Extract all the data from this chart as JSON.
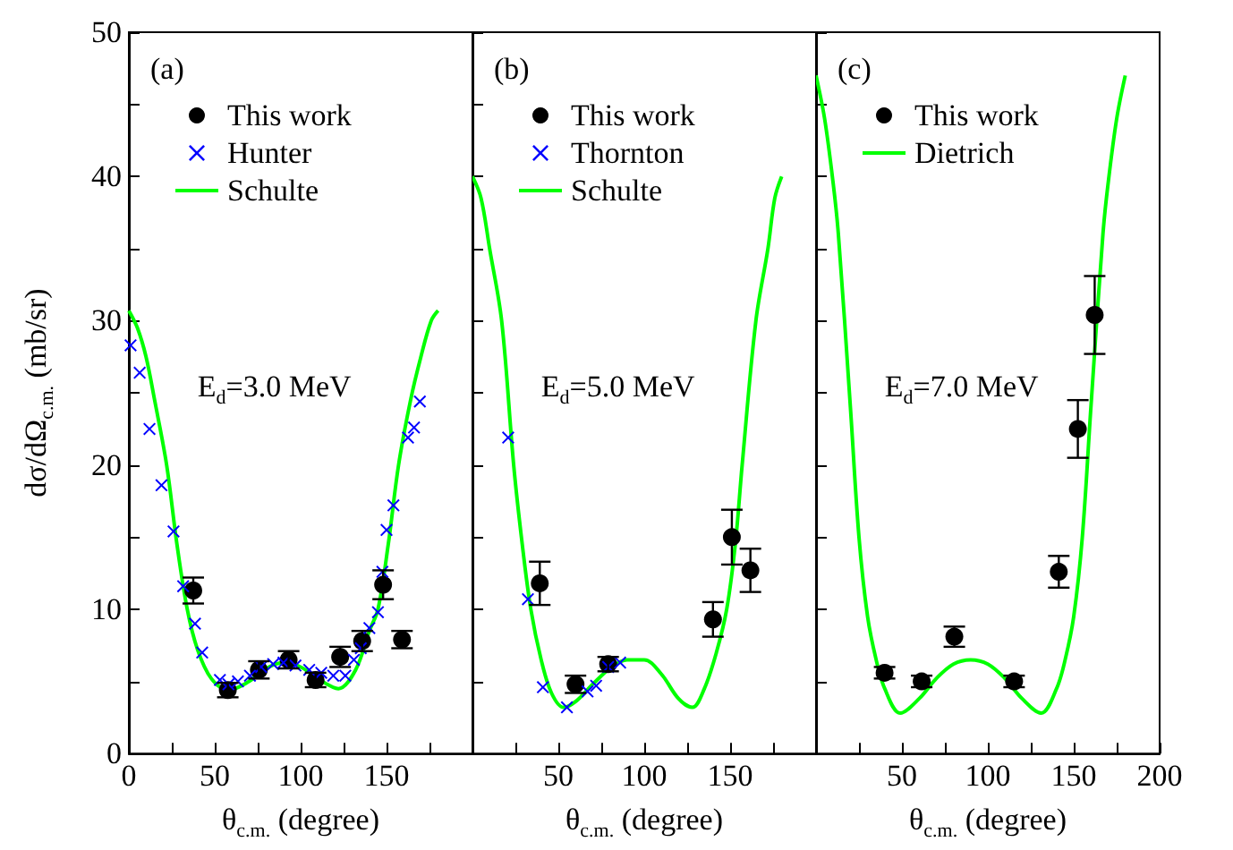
{
  "chart_data": [
    {
      "type": "scatter",
      "xlabel": "θ$_{c.m.}$ (degree)",
      "ylabel": "dσ/dΩ$_{c.m.}$ (mb/sr)",
      "xlim": [
        0,
        200
      ],
      "ylim": [
        0,
        50
      ],
      "xticks": [
        0,
        {
          "value": 25,
          "label": null
        },
        50,
        {
          "value": 75,
          "label": null
        },
        100,
        {
          "value": 125,
          "label": null
        },
        150,
        {
          "value": 175,
          "label": null
        },
        {
          "value": 200,
          "label": null
        }
      ],
      "yticks": [
        0,
        {
          "value": 5,
          "label": null
        },
        10,
        {
          "value": 15,
          "label": null
        },
        20,
        {
          "value": 25,
          "label": null
        },
        30,
        {
          "value": 35,
          "label": null
        },
        40,
        {
          "value": 45,
          "label": null
        },
        50
      ],
      "legend": "top left",
      "grid": false,
      "annotations": [
        "(a)",
        "E$_{d}$=3.0 MeV"
      ],
      "series": [
        {
          "name": "This work",
          "marker": "circle",
          "color": "#000000",
          "x": [
            37.5,
            57.6,
            75.7,
            93,
            108.7,
            123,
            135.8,
            148,
            159
          ],
          "values": [
            11.3,
            4.4,
            5.8,
            6.5,
            5.1,
            6.7,
            7.8,
            11.7,
            7.9
          ],
          "errors": [
            0.9,
            0.5,
            0.6,
            0.6,
            0.5,
            0.7,
            0.7,
            1.0,
            0.6
          ]
        },
        {
          "name": "Hunter",
          "marker": "cross",
          "color": "#0000ff",
          "x": [
            1,
            6.3,
            12,
            19,
            26,
            31.6,
            38.5,
            42.7,
            53,
            58,
            63.5,
            70.5,
            77,
            84,
            90,
            97,
            105,
            112,
            119,
            126,
            131,
            135,
            140,
            145,
            147.6,
            150,
            154,
            162.5,
            166,
            169.4
          ],
          "values": [
            28.3,
            26.4,
            22.5,
            18.6,
            15.4,
            11.6,
            9.0,
            7.0,
            5.1,
            4.8,
            5.0,
            5.4,
            6.0,
            6.2,
            6.3,
            6.1,
            5.8,
            5.6,
            5.4,
            5.4,
            6.5,
            7.3,
            8.7,
            9.8,
            12.6,
            15.5,
            17.2,
            21.9,
            22.6,
            24.4
          ]
        },
        {
          "name": "Schulte",
          "type": "line",
          "marker": "none",
          "color": "#00ff00",
          "x": [
            0,
            5,
            10,
            15,
            22,
            28,
            34,
            40,
            48,
            58,
            70,
            80,
            90,
            100,
            110,
            122,
            132,
            140,
            145,
            151,
            157,
            164,
            170,
            176,
            180
          ],
          "values": [
            30.7,
            29.5,
            27.5,
            24.5,
            20,
            14.5,
            10,
            7.2,
            5.2,
            4.4,
            5.0,
            5.9,
            6.3,
            6.0,
            5.2,
            4.5,
            5.8,
            8.5,
            10,
            14.5,
            20,
            24.5,
            27.5,
            30,
            30.7
          ]
        }
      ]
    },
    {
      "type": "scatter",
      "xlabel": "θ$_{c.m.}$ (degree)",
      "xlim": [
        0,
        200
      ],
      "ylim": [
        0,
        50
      ],
      "tick_labels": "x",
      "xticks": [
        {
          "value": 0,
          "label": null
        },
        {
          "value": 25,
          "label": null
        },
        50,
        {
          "value": 75,
          "label": null
        },
        100,
        {
          "value": 125,
          "label": null
        },
        150,
        {
          "value": 175,
          "label": null
        },
        {
          "value": 200,
          "label": null
        }
      ],
      "yticks": [
        0,
        {
          "value": 5,
          "label": null
        },
        10,
        {
          "value": 15,
          "label": null
        },
        20,
        {
          "value": 25,
          "label": null
        },
        30,
        {
          "value": 35,
          "label": null
        },
        40,
        {
          "value": 45,
          "label": null
        },
        50
      ],
      "legend": "top left",
      "grid": false,
      "annotations": [
        "(b)",
        "E$_{d}$=5.0 MeV"
      ],
      "series": [
        {
          "name": "This work",
          "marker": "circle",
          "color": "#000000",
          "x": [
            39.2,
            60,
            79,
            140,
            151,
            161.8
          ],
          "values": [
            11.8,
            4.8,
            6.2,
            9.3,
            15.0,
            12.7
          ],
          "errors": [
            1.5,
            0.6,
            0.5,
            1.2,
            1.9,
            1.5
          ]
        },
        {
          "name": "Thornton",
          "marker": "cross",
          "color": "#0000ff",
          "x": [
            20.8,
            32.3,
            41,
            55,
            67,
            72,
            79,
            86
          ],
          "values": [
            21.9,
            10.7,
            4.6,
            3.2,
            4.3,
            4.7,
            6.0,
            6.3
          ]
        },
        {
          "name": "Schulte",
          "type": "line",
          "marker": "none",
          "color": "#00ff00",
          "x": [
            0,
            5,
            10,
            17,
            24,
            29,
            34,
            40,
            46,
            53,
            60,
            70,
            80,
            90,
            100,
            110,
            120,
            128,
            135,
            142,
            148,
            153,
            157,
            165,
            172,
            176,
            180
          ],
          "values": [
            40,
            38.5,
            35,
            30,
            20,
            14.5,
            10,
            6.5,
            4.2,
            3.2,
            3.6,
            4.8,
            5.9,
            6.5,
            6.5,
            5.5,
            3.8,
            3.2,
            4.5,
            7,
            10,
            14.5,
            20,
            30,
            35,
            38.5,
            40
          ]
        }
      ]
    },
    {
      "type": "scatter",
      "xlabel": "θ$_{c.m.}$ (degree)",
      "xlim": [
        0,
        200
      ],
      "ylim": [
        0,
        50
      ],
      "tick_labels": "x",
      "xticks": [
        {
          "value": 0,
          "label": null
        },
        {
          "value": 25,
          "label": null
        },
        50,
        {
          "value": 75,
          "label": null
        },
        100,
        {
          "value": 125,
          "label": null
        },
        150,
        {
          "value": 175,
          "label": null
        },
        200
      ],
      "yticks": [
        0,
        {
          "value": 5,
          "label": null
        },
        10,
        {
          "value": 15,
          "label": null
        },
        20,
        {
          "value": 25,
          "label": null
        },
        30,
        {
          "value": 35,
          "label": null
        },
        40,
        {
          "value": 45,
          "label": null
        },
        50
      ],
      "legend": "top left",
      "grid": false,
      "annotations": [
        "(c)",
        "E$_{d}$=7.0 MeV"
      ],
      "series": [
        {
          "name": "This work",
          "marker": "circle",
          "color": "#000000",
          "x": [
            39.9,
            61.5,
            80.5,
            115.3,
            141.3,
            152.4,
            162.2
          ],
          "values": [
            5.6,
            5.0,
            8.1,
            5.0,
            12.6,
            22.5,
            30.4
          ],
          "errors": [
            0.4,
            0.4,
            0.7,
            0.4,
            1.1,
            2.0,
            2.7
          ]
        },
        {
          "name": "Dietrich",
          "type": "line",
          "marker": "none",
          "color": "#00ff00",
          "x": [
            0,
            5,
            10,
            13,
            20,
            25,
            30,
            35,
            40,
            49,
            60,
            70,
            80,
            90,
            100,
            110,
            120,
            131,
            140,
            145,
            150,
            155,
            160,
            167,
            170,
            175,
            180
          ],
          "values": [
            47,
            44,
            39.5,
            36,
            24,
            15,
            9.5,
            6.5,
            4.5,
            2.8,
            3.8,
            5.2,
            6.2,
            6.5,
            6.2,
            5.2,
            3.8,
            2.8,
            4.5,
            6.5,
            9.5,
            15,
            24,
            36,
            39.5,
            44,
            47
          ]
        }
      ]
    }
  ]
}
